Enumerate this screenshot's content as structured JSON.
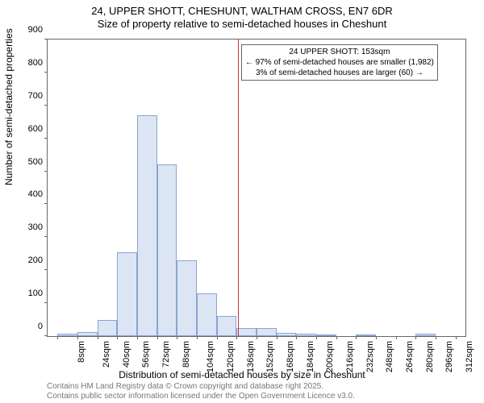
{
  "title_main": "24, UPPER SHOTT, CHESHUNT, WALTHAM CROSS, EN7 6DR",
  "title_sub": "Size of property relative to semi-detached houses in Cheshunt",
  "ylabel": "Number of semi-detached properties",
  "xlabel": "Distribution of semi-detached houses by size in Cheshunt",
  "footer1": "Contains HM Land Registry data © Crown copyright and database right 2025.",
  "footer2": "Contains public sector information licensed under the Open Government Licence v3.0.",
  "annotation": {
    "line1": "24 UPPER SHOTT: 153sqm",
    "line2": "← 97% of semi-detached houses are smaller (1,982)",
    "line3": "3% of semi-detached houses are larger (60) →"
  },
  "chart": {
    "type": "histogram",
    "ylim": [
      0,
      900
    ],
    "ytick_step": 100,
    "xtick_start": 8,
    "xtick_step": 16,
    "xtick_count": 21,
    "xtick_unit": "sqm",
    "bin_start": 0,
    "bin_width": 16,
    "xrange": [
      0,
      336
    ],
    "refline_x": 153,
    "bar_fill": "#dce5f4",
    "bar_stroke": "#8ba4cf",
    "refline_color": "#cc3333",
    "background_color": "#ffffff",
    "bars": [
      {
        "x0": 8,
        "x1": 24,
        "y": 8
      },
      {
        "x0": 24,
        "x1": 40,
        "y": 12
      },
      {
        "x0": 40,
        "x1": 56,
        "y": 50
      },
      {
        "x0": 56,
        "x1": 72,
        "y": 255
      },
      {
        "x0": 72,
        "x1": 88,
        "y": 670
      },
      {
        "x0": 88,
        "x1": 104,
        "y": 520
      },
      {
        "x0": 104,
        "x1": 120,
        "y": 230
      },
      {
        "x0": 120,
        "x1": 136,
        "y": 130
      },
      {
        "x0": 136,
        "x1": 152,
        "y": 60
      },
      {
        "x0": 152,
        "x1": 168,
        "y": 25
      },
      {
        "x0": 168,
        "x1": 184,
        "y": 25
      },
      {
        "x0": 184,
        "x1": 200,
        "y": 10
      },
      {
        "x0": 200,
        "x1": 216,
        "y": 8
      },
      {
        "x0": 216,
        "x1": 232,
        "y": 4
      },
      {
        "x0": 248,
        "x1": 264,
        "y": 4
      },
      {
        "x0": 296,
        "x1": 312,
        "y": 8
      }
    ]
  }
}
